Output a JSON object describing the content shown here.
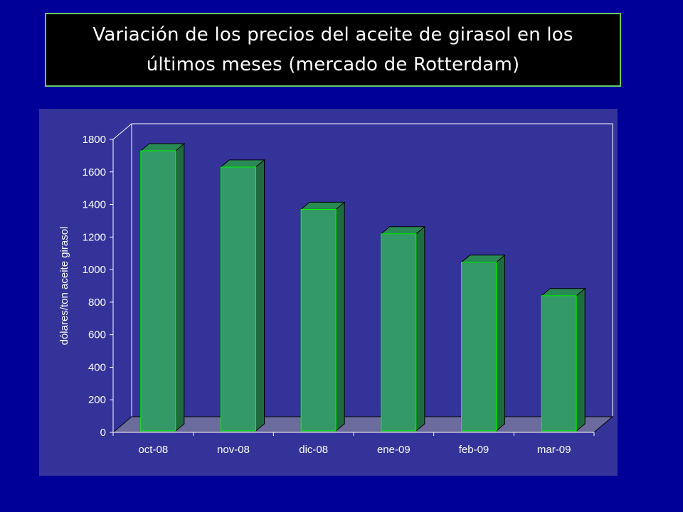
{
  "title": "Variación de los precios del aceite de girasol en los últimos meses (mercado de Rotterdam)",
  "colors": {
    "background": "#000099",
    "plot_panel": "#333399",
    "title_box": "#000000",
    "title_border": "#66cc66",
    "bar_front": "#339966",
    "bar_side": "#1f6b40",
    "bar_top": "#2a8a55",
    "bar_edge": "#00ff00",
    "floor": "#6b6b9e"
  },
  "chart_data": {
    "type": "bar",
    "categories": [
      "oct-08",
      "nov-08",
      "dic-08",
      "ene-09",
      "feb-09",
      "mar-09"
    ],
    "values": [
      1730,
      1630,
      1370,
      1220,
      1045,
      840
    ],
    "title": "",
    "xlabel": "",
    "ylabel": "dólares/ton aceite girasol",
    "ylim": [
      0,
      1800
    ],
    "yticks": [
      0,
      200,
      400,
      600,
      800,
      1000,
      1200,
      1400,
      1600,
      1800
    ],
    "ytick_labels": [
      "0",
      "200",
      "400",
      "600",
      "800",
      "1000",
      "1200",
      "1400",
      "1600",
      "1800"
    ],
    "grid": false,
    "style": "3d-bar"
  }
}
